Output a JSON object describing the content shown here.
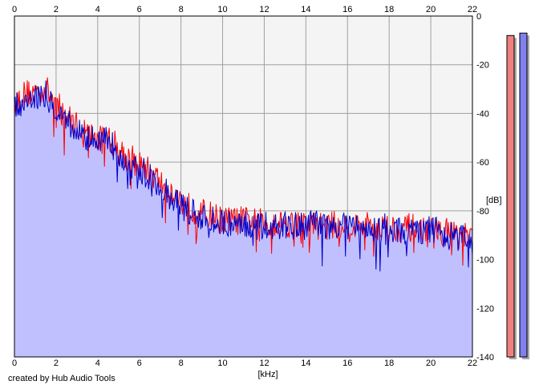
{
  "credit": "created by Hub Audio Tools",
  "chart_data": {
    "type": "line",
    "title": "",
    "xlabel": "[kHz]",
    "ylabel": "[dB]",
    "xlim": [
      0,
      22
    ],
    "ylim": [
      -140,
      0
    ],
    "x_ticks": [
      0,
      2,
      4,
      6,
      8,
      10,
      12,
      14,
      16,
      18,
      20,
      22
    ],
    "y_ticks": [
      0,
      -20,
      -40,
      -60,
      -80,
      -100,
      -120,
      -140
    ],
    "x_tick_labels": [
      "0",
      "2",
      "4",
      "6",
      "8",
      "10",
      "12",
      "14",
      "16",
      "18",
      "20",
      "22"
    ],
    "y_tick_labels": [
      "0",
      "-20",
      "-40",
      "-60",
      "-80",
      "-100",
      "-120",
      "-140"
    ],
    "grid": true,
    "fill_under": true,
    "colors": {
      "plot_background": "#f4f4f4",
      "grid": "#a0a0a0",
      "fill": "#c0c0ff",
      "series_1": "#ff0000",
      "series_2": "#0000c8",
      "meter_1": "#f08080",
      "meter_2": "#8080f0"
    },
    "series": [
      {
        "x": [
          0,
          0.5,
          1,
          1.5,
          2,
          2.5,
          3,
          3.5,
          4,
          4.5,
          5,
          5.5,
          6,
          6.5,
          7,
          7.5,
          8,
          8.5,
          9,
          9.5,
          10,
          11,
          12,
          13,
          14,
          15,
          16,
          17,
          18,
          19,
          20,
          21,
          22
        ],
        "values": [
          -36,
          -32,
          -31,
          -30,
          -36,
          -41,
          -45,
          -48,
          -51,
          -50,
          -54,
          -58,
          -61,
          -64,
          -68,
          -72,
          -76,
          -79,
          -81,
          -82,
          -84,
          -84,
          -85,
          -85,
          -86,
          -86,
          -86,
          -86,
          -87,
          -87,
          -88,
          -89,
          -92
        ]
      },
      {
        "x": [
          0,
          0.5,
          1,
          1.5,
          2,
          2.5,
          3,
          3.5,
          4,
          4.5,
          5,
          5.5,
          6,
          6.5,
          7,
          7.5,
          8,
          8.5,
          9,
          9.5,
          10,
          11,
          12,
          13,
          14,
          15,
          16,
          17,
          18,
          19,
          20,
          21,
          22
        ],
        "values": [
          -37,
          -34,
          -33,
          -32,
          -38,
          -43,
          -47,
          -50,
          -52,
          -51,
          -56,
          -60,
          -63,
          -66,
          -70,
          -74,
          -78,
          -81,
          -83,
          -84,
          -85,
          -85,
          -86,
          -86,
          -86,
          -86,
          -87,
          -87,
          -87,
          -88,
          -88,
          -90,
          -93
        ]
      }
    ],
    "meters": [
      {
        "top_db": -8
      },
      {
        "top_db": -7
      }
    ]
  }
}
